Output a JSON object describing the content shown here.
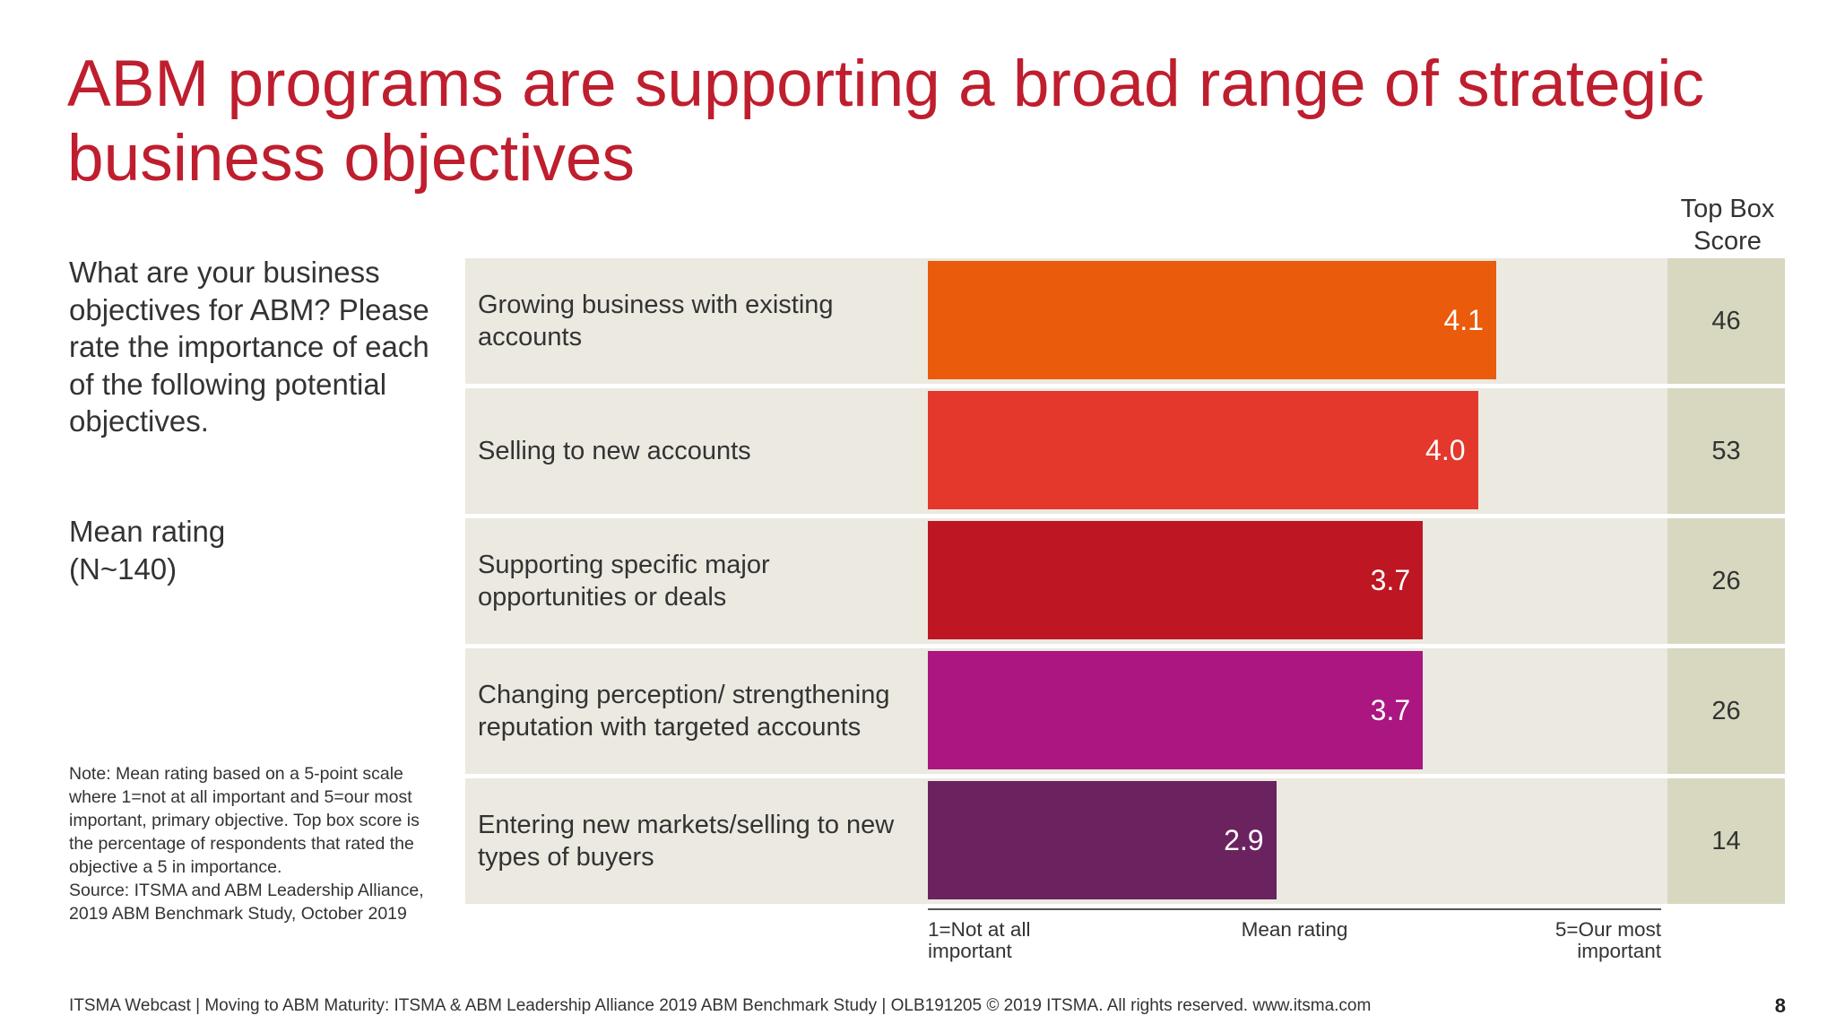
{
  "title": "ABM programs are supporting a broad range of strategic business objectives",
  "question": "What are your business objectives for ABM? Please rate the importance of each of the following potential objectives.",
  "mean_label": [
    "Mean rating",
    "(N~140)"
  ],
  "note_lines": [
    "Note: Mean rating based on a 5-point scale where 1=not at all important and 5=our most important, primary objective. Top box score is the percentage of respondents that rated the objective a 5 in importance.",
    "Source: ITSMA and ABM Leadership Alliance, 2019 ABM Benchmark Study, October 2019"
  ],
  "top_box_header": "Top Box Score",
  "chart_data": {
    "type": "bar",
    "orientation": "horizontal",
    "categories": [
      "Growing business with existing accounts",
      "Selling to new accounts",
      "Supporting specific major opportunities or deals",
      "Changing perception/ strengthening reputation with targeted accounts",
      "Entering new markets/selling to new types of buyers"
    ],
    "values": [
      4.1,
      4.0,
      3.7,
      3.7,
      2.9
    ],
    "value_labels": [
      "4.1",
      "4.0",
      "3.7",
      "3.7",
      "2.9"
    ],
    "top_box_scores": [
      "46",
      "53",
      "26",
      "26",
      "14"
    ],
    "colors": [
      "#ea5b0c",
      "#e3382b",
      "#be1622",
      "#ab1680",
      "#6b2360"
    ],
    "xlim": [
      1,
      5
    ],
    "xlabel": "Mean rating",
    "axis_min_label": [
      "1=Not at all",
      "important"
    ],
    "axis_max_label": [
      "5=Our most",
      "important"
    ],
    "grid": false
  },
  "footer": "ITSMA Webcast | Moving to ABM Maturity: ITSMA & ABM Leadership Alliance 2019 ABM Benchmark Study | OLB191205 © 2019 ITSMA. All rights reserved. www.itsma.com",
  "page_number": "8"
}
